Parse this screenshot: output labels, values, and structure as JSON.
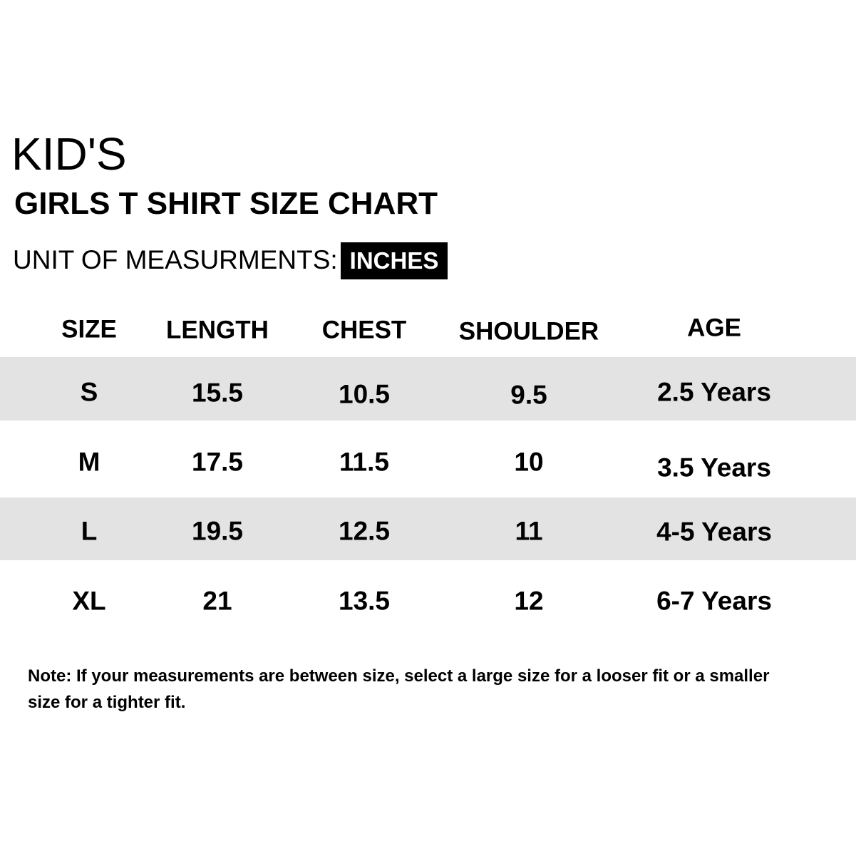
{
  "heading": "KID'S",
  "title": "GIRLS T SHIRT SIZE CHART",
  "unit_label": "UNIT OF MEASURMENTS:",
  "unit_value": "INCHES",
  "table": {
    "headers": [
      "SIZE",
      "LENGTH",
      "CHEST",
      "SHOULDER",
      "AGE"
    ],
    "rows": [
      [
        "S",
        "15.5",
        "10.5",
        "9.5",
        "2.5 Years"
      ],
      [
        "M",
        "17.5",
        "11.5",
        "10",
        "3.5 Years"
      ],
      [
        "L",
        "19.5",
        "12.5",
        "11",
        "4-5 Years"
      ],
      [
        "XL",
        "21",
        "13.5",
        "12",
        "6-7 Years"
      ]
    ],
    "band_color": "#e3e3e3"
  },
  "note": "Note: If your measurements are between size, select a large size for a looser fit or a smaller size for a tighter fit."
}
